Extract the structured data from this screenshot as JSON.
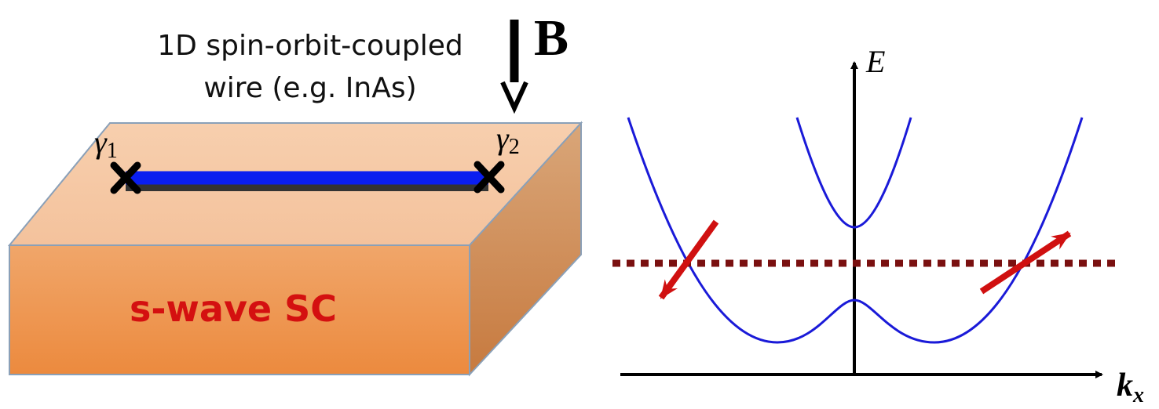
{
  "wire_label": {
    "line1": "1D spin-orbit-coupled",
    "line2": "wire (e.g. InAs)"
  },
  "field_label": "B",
  "endpoints": [
    {
      "symbol": "γ",
      "subscript": "1"
    },
    {
      "symbol": "γ",
      "subscript": "2"
    }
  ],
  "substrate_label": "s-wave SC",
  "plot": {
    "y_axis_label": "E",
    "x_axis_label": {
      "symbol": "k",
      "subscript": "x"
    }
  }
}
